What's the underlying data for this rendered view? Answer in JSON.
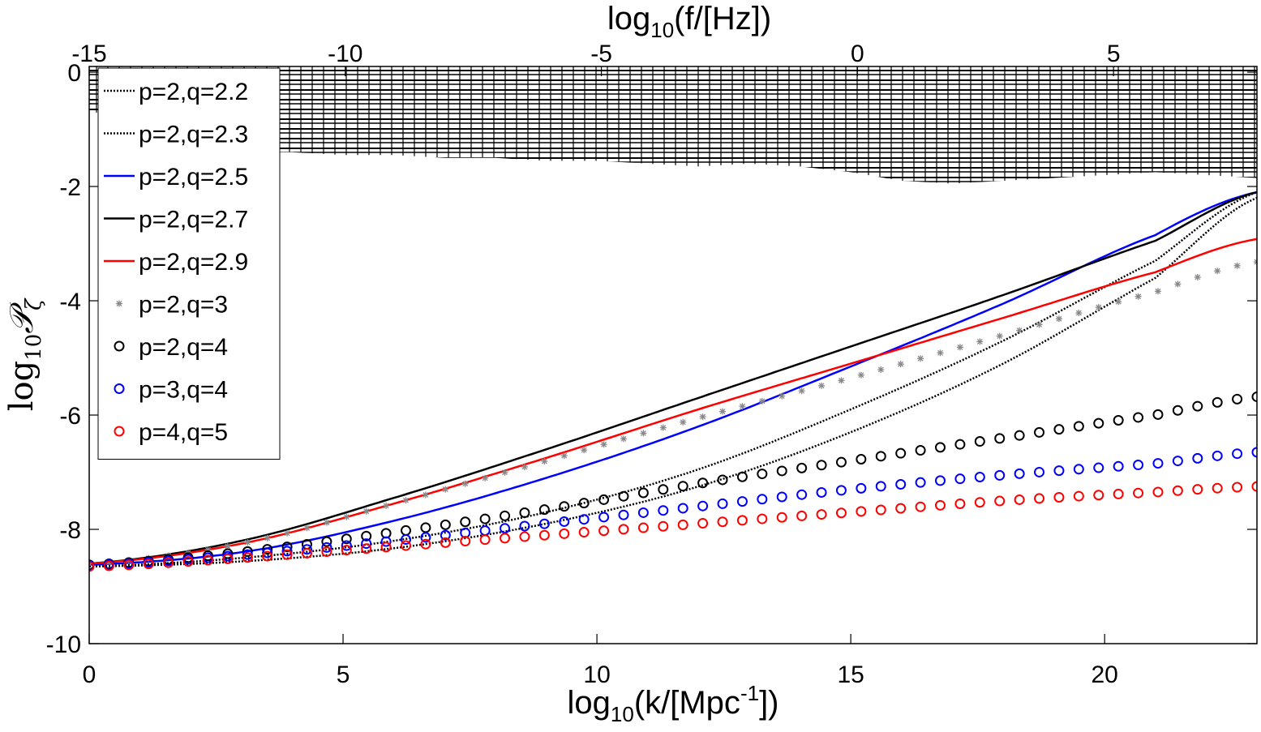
{
  "chart_data": {
    "type": "line",
    "xlabel": {
      "base": "log",
      "sub": "10",
      "rest_open": "(k/[Mpc",
      "sup": "-1",
      "rest_close": "])"
    },
    "x2label": {
      "base": "log",
      "sub": "10",
      "rest": "(f/[Hz])"
    },
    "ylabel": {
      "prefix": "log",
      "sub": "10",
      "symbol": "𝒫",
      "subscript": "ζ"
    },
    "xlim": [
      0,
      23
    ],
    "x2lim": [
      -15,
      7.8
    ],
    "ylim": [
      -10,
      0.1
    ],
    "xticks": [
      0,
      5,
      10,
      15,
      20
    ],
    "xtick_labels": [
      "0",
      "5",
      "10",
      "15",
      "20"
    ],
    "x2ticks": [
      -15,
      -10,
      -5,
      0,
      5
    ],
    "x2tick_labels": [
      "-15",
      "-10",
      "-5",
      "0",
      "5"
    ],
    "yticks": [
      0,
      -2,
      -4,
      -6,
      -8,
      -10
    ],
    "ytick_labels": [
      "0",
      "-2",
      "-4",
      "-6",
      "-8",
      "-10"
    ],
    "grid": false,
    "legend_position": "top-left",
    "constraint_band": {
      "color": "#000000",
      "x": [
        0,
        1,
        2,
        3,
        4,
        5,
        6,
        7,
        8,
        9,
        10,
        11,
        12,
        13,
        14,
        15,
        16,
        17,
        18,
        19,
        20,
        21,
        22,
        23
      ],
      "lower": [
        -0.7,
        -0.75,
        -1.25,
        -1.4,
        -1.4,
        -1.45,
        -1.45,
        -1.5,
        -1.5,
        -1.55,
        -1.55,
        -1.6,
        -1.65,
        -1.6,
        -1.65,
        -1.75,
        -1.9,
        -1.95,
        -1.9,
        -1.85,
        -1.8,
        -1.75,
        -1.8,
        -1.85
      ]
    },
    "series": [
      {
        "name": "p=2,q=2.2",
        "style": "dotted",
        "color": "#000000",
        "x": [
          0,
          3,
          6,
          9,
          12,
          15,
          18,
          21,
          23
        ],
        "y": [
          -8.65,
          -8.56,
          -8.33,
          -7.9,
          -7.25,
          -6.3,
          -5.1,
          -3.6,
          -2.2
        ]
      },
      {
        "name": "p=2,q=2.3",
        "style": "dotted",
        "color": "#000000",
        "x": [
          0,
          3,
          6,
          9,
          12,
          15,
          18,
          21,
          23
        ],
        "y": [
          -8.65,
          -8.5,
          -8.2,
          -7.7,
          -6.95,
          -5.9,
          -4.7,
          -3.3,
          -2.1
        ]
      },
      {
        "name": "p=2,q=2.5",
        "style": "solid",
        "color": "#0000ff",
        "x": [
          0,
          3,
          6,
          9,
          12,
          15,
          18,
          21,
          23
        ],
        "y": [
          -8.62,
          -8.4,
          -7.85,
          -7.1,
          -6.2,
          -5.15,
          -4.05,
          -2.85,
          -2.1
        ]
      },
      {
        "name": "p=2,q=2.7",
        "style": "solid",
        "color": "#000000",
        "x": [
          0,
          3,
          6,
          9,
          12,
          15,
          18,
          21,
          23
        ],
        "y": [
          -8.6,
          -8.2,
          -7.45,
          -6.6,
          -5.7,
          -4.8,
          -3.9,
          -2.95,
          -2.1
        ]
      },
      {
        "name": "p=2,q=2.9",
        "style": "solid",
        "color": "#ff0000",
        "x": [
          0,
          3,
          6,
          9,
          12,
          15,
          18,
          21,
          23
        ],
        "y": [
          -8.6,
          -8.25,
          -7.55,
          -6.75,
          -5.9,
          -5.1,
          -4.3,
          -3.5,
          -2.92
        ]
      },
      {
        "name": "p=2,q=3",
        "style": "star",
        "color": "#888888",
        "x": [
          0,
          3,
          6,
          9,
          12,
          15,
          18,
          21,
          23
        ],
        "y": [
          -8.6,
          -8.25,
          -7.55,
          -6.8,
          -6.05,
          -5.35,
          -4.6,
          -3.85,
          -3.32
        ]
      },
      {
        "name": "p=2,q=4",
        "style": "circle",
        "color": "#000000",
        "x": [
          0,
          3,
          6,
          9,
          12,
          15,
          18,
          21,
          23
        ],
        "y": [
          -8.62,
          -8.4,
          -8.05,
          -7.65,
          -7.2,
          -6.8,
          -6.4,
          -6.0,
          -5.68
        ]
      },
      {
        "name": "p=3,q=4",
        "style": "circle",
        "color": "#0000ff",
        "x": [
          0,
          3,
          6,
          9,
          12,
          15,
          18,
          21,
          23
        ],
        "y": [
          -8.63,
          -8.45,
          -8.2,
          -7.9,
          -7.6,
          -7.3,
          -7.05,
          -6.85,
          -6.65
        ]
      },
      {
        "name": "p=4,q=5",
        "style": "circle",
        "color": "#ff0000",
        "x": [
          0,
          3,
          6,
          9,
          12,
          15,
          18,
          21,
          23
        ],
        "y": [
          -8.65,
          -8.5,
          -8.3,
          -8.1,
          -7.9,
          -7.7,
          -7.5,
          -7.35,
          -7.25
        ]
      }
    ]
  }
}
